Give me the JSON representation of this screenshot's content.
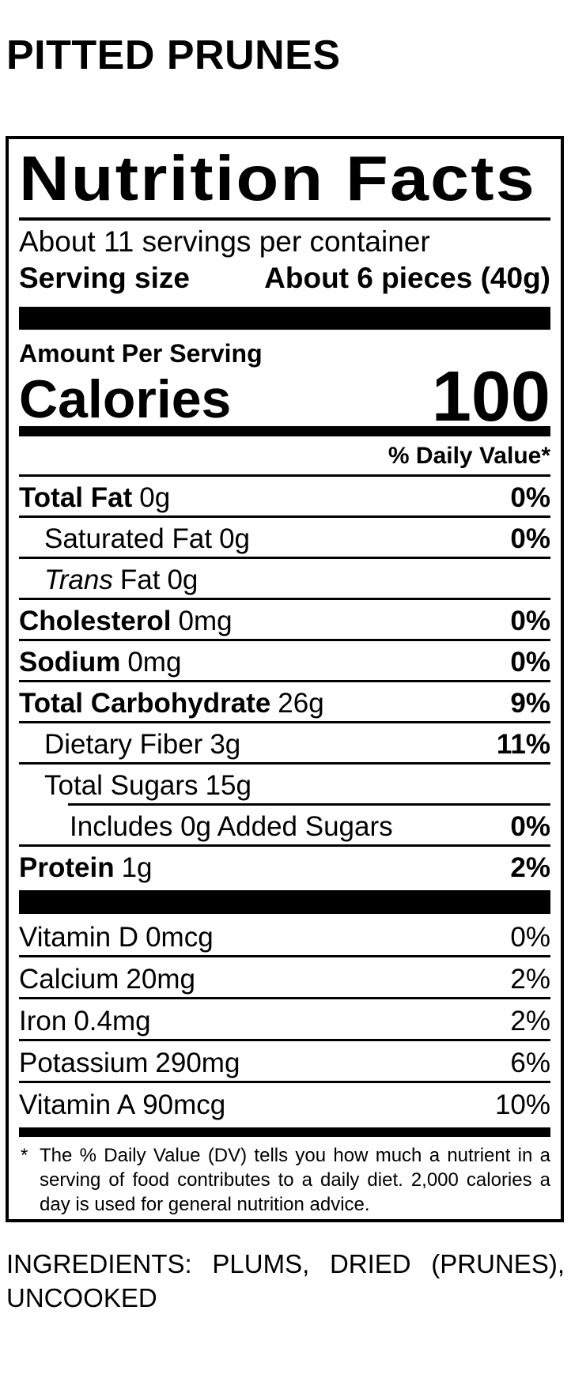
{
  "title": "PITTED PRUNES",
  "colors": {
    "text": "#000000",
    "background": "#ffffff"
  },
  "label": {
    "heading": "Nutrition Facts",
    "servings_per_container": "About 11 servings per container",
    "serving_size_label": "Serving size",
    "serving_size_value": "About 6 pieces (40g)",
    "amount_per_serving": "Amount Per Serving",
    "calories_label": "Calories",
    "calories_value": "100",
    "daily_value_header": "% Daily Value*",
    "rows": [
      {
        "name": "Total Fat",
        "amount": "0g",
        "dv": "0%"
      },
      {
        "name": "Saturated Fat",
        "amount": "0g",
        "dv": "0%"
      },
      {
        "name_italic": "Trans",
        "name": "Fat",
        "amount": "0g",
        "dv": ""
      },
      {
        "name": "Cholesterol",
        "amount": "0mg",
        "dv": "0%"
      },
      {
        "name": "Sodium",
        "amount": "0mg",
        "dv": "0%"
      },
      {
        "name": "Total Carbohydrate",
        "amount": "26g",
        "dv": "9%"
      },
      {
        "name": "Dietary Fiber",
        "amount": "3g",
        "dv": "11%"
      },
      {
        "name": "Total Sugars",
        "amount": "15g",
        "dv": ""
      },
      {
        "name": "Includes 0g Added Sugars",
        "amount": "",
        "dv": "0%"
      },
      {
        "name": "Protein",
        "amount": "1g",
        "dv": "2%"
      }
    ],
    "vitamins": [
      {
        "name": "Vitamin D",
        "amount": "0mcg",
        "dv": "0%"
      },
      {
        "name": "Calcium",
        "amount": "20mg",
        "dv": "2%"
      },
      {
        "name": "Iron",
        "amount": "0.4mg",
        "dv": "2%"
      },
      {
        "name": "Potassium",
        "amount": "290mg",
        "dv": "6%"
      },
      {
        "name": "Vitamin A",
        "amount": "90mcg",
        "dv": "10%"
      }
    ],
    "footnote_marker": "*",
    "footnote": "The % Daily Value (DV) tells you how much a nutrient in a serving of food contributes to a daily diet. 2,000 calories a day is used for general nutrition advice."
  },
  "ingredients": "INGREDIENTS: PLUMS, DRIED (PRUNES), UNCOOKED"
}
